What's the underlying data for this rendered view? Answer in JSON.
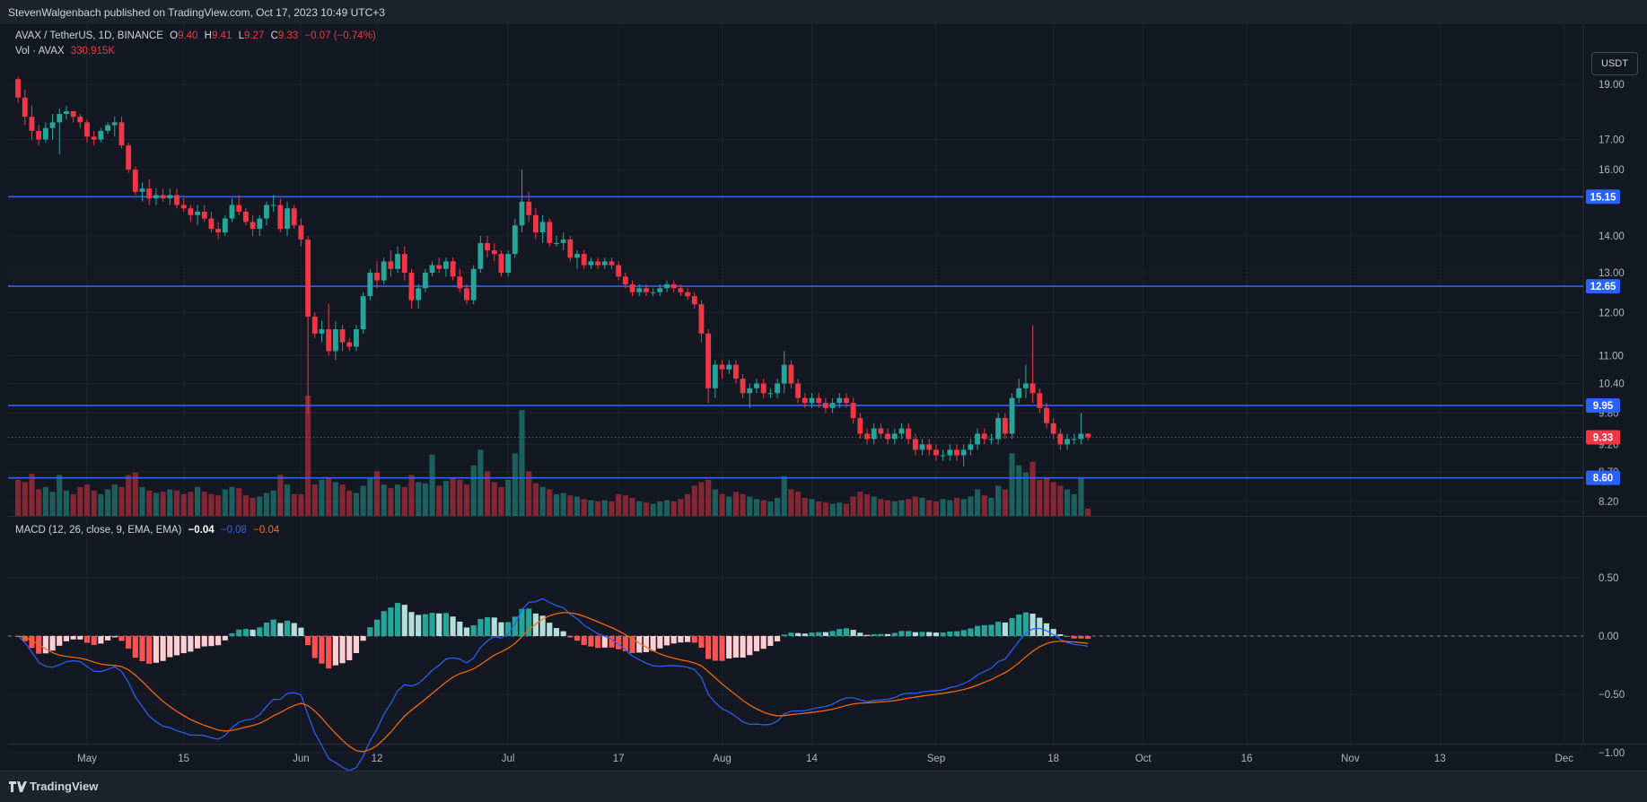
{
  "header": {
    "published": "StevenWalgenbach published on TradingView.com, Oct 17, 2023 10:49 UTC+3"
  },
  "legend": {
    "symbol": "AVAX / TetherUS, 1D, BINANCE",
    "o_label": "O",
    "o_value": "9.40",
    "h_label": "H",
    "h_value": "9.41",
    "l_label": "L",
    "l_value": "9.27",
    "c_label": "C",
    "c_value": "9.33",
    "change": "−0.07 (−0.74%)",
    "vol_label": "Vol · AVAX",
    "vol_value": "330.915K",
    "macd_label": "MACD (12, 26, close, 9, EMA, EMA)",
    "macd_hist": "−0.04",
    "macd_line": "−0.08",
    "macd_signal": "−0.04"
  },
  "toolbar": {
    "currency_button": "USDT"
  },
  "footer": {
    "brand": "TradingView",
    "logo_icon": "tradingview-logo-icon"
  },
  "colors": {
    "up": "#26a69a",
    "down": "#f23645",
    "level": "#2962ff",
    "macd_line": "#2962ff",
    "signal_line": "#ff6d00"
  },
  "chart_data": {
    "type": "candlestick",
    "price_axis": {
      "scale": "log",
      "ticks": [
        "19.00",
        "17.00",
        "16.00",
        "14.00",
        "13.00",
        "12.00",
        "11.00",
        "10.40",
        "9.80",
        "9.20",
        "8.70",
        "8.20"
      ],
      "levels": [
        15.15,
        12.65,
        9.95,
        8.6
      ],
      "level_labels": [
        "15.15",
        "12.65",
        "9.95",
        "8.60"
      ],
      "last_price": 9.33,
      "last_label": "9.33"
    },
    "macd_axis": {
      "ticks": [
        "0.50",
        "0.00",
        "−0.50",
        "−1.00"
      ],
      "values": [
        0.5,
        0,
        -0.5,
        -1.0
      ],
      "range": [
        -1.1,
        0.62
      ]
    },
    "time_axis": {
      "labels": [
        "May",
        "15",
        "Jun",
        "12",
        "Jul",
        "17",
        "Aug",
        "14",
        "Sep",
        "18",
        "Oct",
        "16",
        "Nov",
        "13",
        "Dec"
      ],
      "first_date": "2023-04-21",
      "label_days": [
        10,
        24,
        41,
        52,
        71,
        87,
        102,
        115,
        133,
        150,
        163,
        178,
        193,
        206,
        224
      ]
    },
    "ohlc": [
      [
        19.2,
        19.3,
        18.3,
        18.5
      ],
      [
        18.5,
        18.8,
        17.5,
        17.8
      ],
      [
        17.8,
        18.2,
        17.0,
        17.3
      ],
      [
        17.3,
        17.5,
        16.8,
        17.0
      ],
      [
        17.0,
        17.6,
        16.9,
        17.4
      ],
      [
        17.4,
        17.9,
        17.0,
        17.6
      ],
      [
        17.6,
        18.1,
        16.5,
        17.9
      ],
      [
        17.9,
        18.2,
        17.7,
        18.0
      ],
      [
        18.0,
        18.0,
        17.6,
        17.8
      ],
      [
        17.8,
        17.9,
        17.4,
        17.6
      ],
      [
        17.6,
        17.7,
        16.9,
        17.1
      ],
      [
        17.1,
        17.3,
        16.8,
        17.0
      ],
      [
        17.0,
        17.4,
        16.9,
        17.3
      ],
      [
        17.3,
        17.6,
        17.2,
        17.5
      ],
      [
        17.5,
        17.8,
        17.1,
        17.6
      ],
      [
        17.6,
        17.8,
        16.7,
        16.8
      ],
      [
        16.8,
        16.9,
        15.9,
        16.0
      ],
      [
        16.0,
        16.1,
        15.2,
        15.3
      ],
      [
        15.3,
        15.6,
        15.0,
        15.4
      ],
      [
        15.4,
        15.7,
        14.9,
        15.1
      ],
      [
        15.1,
        15.4,
        14.9,
        15.2
      ],
      [
        15.2,
        15.4,
        15.0,
        15.1
      ],
      [
        15.1,
        15.4,
        14.9,
        15.2
      ],
      [
        15.2,
        15.4,
        14.8,
        14.9
      ],
      [
        14.9,
        15.1,
        14.7,
        14.8
      ],
      [
        14.8,
        14.9,
        14.4,
        14.6
      ],
      [
        14.6,
        14.9,
        14.3,
        14.7
      ],
      [
        14.7,
        14.9,
        14.4,
        14.5
      ],
      [
        14.5,
        14.7,
        14.1,
        14.2
      ],
      [
        14.2,
        14.4,
        13.9,
        14.1
      ],
      [
        14.1,
        14.6,
        14.0,
        14.5
      ],
      [
        14.5,
        15.1,
        14.4,
        14.9
      ],
      [
        14.9,
        15.2,
        14.6,
        14.7
      ],
      [
        14.7,
        14.8,
        14.3,
        14.4
      ],
      [
        14.4,
        14.6,
        14.0,
        14.2
      ],
      [
        14.2,
        14.6,
        14.0,
        14.5
      ],
      [
        14.5,
        15.0,
        14.3,
        14.9
      ],
      [
        14.9,
        15.2,
        14.7,
        14.9
      ],
      [
        14.9,
        15.1,
        14.1,
        14.2
      ],
      [
        14.2,
        15.0,
        14.0,
        14.8
      ],
      [
        14.8,
        14.9,
        14.2,
        14.3
      ],
      [
        14.3,
        14.5,
        13.7,
        13.9
      ],
      [
        13.9,
        14.0,
        9.8,
        11.9
      ],
      [
        11.9,
        12.0,
        11.4,
        11.5
      ],
      [
        11.5,
        11.8,
        11.3,
        11.6
      ],
      [
        11.6,
        12.2,
        11.0,
        11.1
      ],
      [
        11.1,
        11.8,
        10.9,
        11.6
      ],
      [
        11.6,
        11.7,
        11.1,
        11.3
      ],
      [
        11.3,
        11.4,
        11.1,
        11.2
      ],
      [
        11.2,
        11.7,
        11.1,
        11.6
      ],
      [
        11.6,
        12.5,
        11.5,
        12.4
      ],
      [
        12.4,
        13.1,
        12.3,
        13.0
      ],
      [
        13.0,
        13.3,
        12.6,
        12.8
      ],
      [
        12.8,
        13.4,
        12.7,
        13.3
      ],
      [
        13.3,
        13.6,
        12.9,
        13.1
      ],
      [
        13.1,
        13.7,
        13.0,
        13.5
      ],
      [
        13.5,
        13.7,
        12.8,
        13.0
      ],
      [
        13.0,
        13.1,
        12.1,
        12.3
      ],
      [
        12.3,
        12.7,
        12.1,
        12.6
      ],
      [
        12.6,
        13.1,
        12.5,
        13.0
      ],
      [
        13.0,
        13.3,
        12.9,
        13.2
      ],
      [
        13.2,
        13.4,
        13.0,
        13.1
      ],
      [
        13.1,
        13.4,
        12.9,
        13.3
      ],
      [
        13.3,
        13.4,
        12.8,
        12.9
      ],
      [
        12.9,
        13.1,
        12.5,
        12.6
      ],
      [
        12.6,
        12.7,
        12.2,
        12.3
      ],
      [
        12.3,
        13.2,
        12.2,
        13.1
      ],
      [
        13.1,
        14.0,
        13.0,
        13.8
      ],
      [
        13.8,
        14.0,
        13.4,
        13.6
      ],
      [
        13.6,
        13.8,
        13.3,
        13.5
      ],
      [
        13.5,
        13.6,
        12.9,
        13.0
      ],
      [
        13.0,
        13.6,
        12.9,
        13.5
      ],
      [
        13.5,
        14.5,
        13.4,
        14.3
      ],
      [
        14.3,
        16.0,
        14.1,
        15.0
      ],
      [
        15.0,
        15.3,
        14.4,
        14.6
      ],
      [
        14.6,
        14.8,
        13.9,
        14.1
      ],
      [
        14.1,
        14.6,
        13.8,
        14.4
      ],
      [
        14.4,
        14.5,
        13.7,
        13.8
      ],
      [
        13.8,
        14.0,
        13.7,
        13.8
      ],
      [
        13.8,
        14.1,
        13.6,
        13.9
      ],
      [
        13.9,
        14.0,
        13.3,
        13.4
      ],
      [
        13.4,
        13.6,
        13.1,
        13.5
      ],
      [
        13.5,
        13.6,
        13.1,
        13.2
      ],
      [
        13.2,
        13.4,
        13.1,
        13.3
      ],
      [
        13.3,
        13.4,
        13.1,
        13.2
      ],
      [
        13.2,
        13.4,
        13.1,
        13.3
      ],
      [
        13.3,
        13.4,
        13.1,
        13.2
      ],
      [
        13.2,
        13.3,
        12.8,
        12.9
      ],
      [
        12.9,
        13.0,
        12.6,
        12.7
      ],
      [
        12.7,
        12.8,
        12.4,
        12.5
      ],
      [
        12.5,
        12.7,
        12.4,
        12.6
      ],
      [
        12.6,
        12.7,
        12.4,
        12.5
      ],
      [
        12.5,
        12.6,
        12.4,
        12.5
      ],
      [
        12.5,
        12.7,
        12.4,
        12.6
      ],
      [
        12.6,
        12.8,
        12.5,
        12.7
      ],
      [
        12.7,
        12.8,
        12.5,
        12.6
      ],
      [
        12.6,
        12.7,
        12.4,
        12.5
      ],
      [
        12.5,
        12.6,
        12.3,
        12.4
      ],
      [
        12.4,
        12.5,
        12.1,
        12.2
      ],
      [
        12.2,
        12.3,
        11.3,
        11.5
      ],
      [
        11.5,
        11.6,
        10.0,
        10.3
      ],
      [
        10.3,
        10.9,
        10.1,
        10.8
      ],
      [
        10.8,
        10.9,
        10.5,
        10.7
      ],
      [
        10.7,
        10.9,
        10.6,
        10.8
      ],
      [
        10.8,
        10.9,
        10.4,
        10.5
      ],
      [
        10.5,
        10.6,
        10.1,
        10.2
      ],
      [
        10.2,
        10.4,
        9.9,
        10.3
      ],
      [
        10.3,
        10.5,
        10.2,
        10.4
      ],
      [
        10.4,
        10.5,
        10.1,
        10.2
      ],
      [
        10.2,
        10.3,
        10.1,
        10.2
      ],
      [
        10.2,
        10.5,
        10.1,
        10.4
      ],
      [
        10.4,
        11.1,
        10.2,
        10.8
      ],
      [
        10.8,
        10.9,
        10.3,
        10.4
      ],
      [
        10.4,
        10.5,
        10.0,
        10.1
      ],
      [
        10.1,
        10.2,
        9.9,
        10.0
      ],
      [
        10.0,
        10.2,
        9.9,
        10.1
      ],
      [
        10.1,
        10.2,
        9.9,
        10.0
      ],
      [
        10.0,
        10.1,
        9.8,
        9.9
      ],
      [
        9.9,
        10.1,
        9.8,
        10.0
      ],
      [
        10.0,
        10.2,
        9.9,
        10.1
      ],
      [
        10.1,
        10.2,
        9.9,
        10.0
      ],
      [
        10.0,
        10.1,
        9.6,
        9.7
      ],
      [
        9.7,
        9.8,
        9.3,
        9.4
      ],
      [
        9.4,
        9.5,
        9.2,
        9.3
      ],
      [
        9.3,
        9.6,
        9.2,
        9.5
      ],
      [
        9.5,
        9.6,
        9.3,
        9.4
      ],
      [
        9.4,
        9.5,
        9.2,
        9.3
      ],
      [
        9.3,
        9.5,
        9.2,
        9.4
      ],
      [
        9.4,
        9.6,
        9.3,
        9.5
      ],
      [
        9.5,
        9.6,
        9.2,
        9.3
      ],
      [
        9.3,
        9.4,
        9.0,
        9.1
      ],
      [
        9.1,
        9.3,
        9.0,
        9.2
      ],
      [
        9.2,
        9.3,
        9.0,
        9.1
      ],
      [
        9.1,
        9.2,
        8.9,
        9.0
      ],
      [
        9.0,
        9.1,
        8.9,
        9.0
      ],
      [
        9.0,
        9.2,
        8.9,
        9.1
      ],
      [
        9.1,
        9.2,
        8.9,
        9.0
      ],
      [
        9.0,
        9.2,
        8.8,
        9.1
      ],
      [
        9.1,
        9.3,
        9.0,
        9.2
      ],
      [
        9.2,
        9.5,
        9.1,
        9.4
      ],
      [
        9.4,
        9.5,
        9.2,
        9.3
      ],
      [
        9.3,
        9.4,
        9.2,
        9.3
      ],
      [
        9.3,
        9.8,
        9.2,
        9.7
      ],
      [
        9.7,
        9.8,
        9.3,
        9.4
      ],
      [
        9.4,
        10.2,
        9.3,
        10.1
      ],
      [
        10.1,
        10.5,
        10.0,
        10.3
      ],
      [
        10.3,
        10.8,
        10.1,
        10.4
      ],
      [
        10.4,
        11.7,
        10.0,
        10.2
      ],
      [
        10.2,
        10.3,
        9.8,
        9.9
      ],
      [
        9.9,
        10.0,
        9.5,
        9.6
      ],
      [
        9.6,
        9.7,
        9.3,
        9.4
      ],
      [
        9.4,
        9.5,
        9.1,
        9.2
      ],
      [
        9.2,
        9.4,
        9.1,
        9.3
      ],
      [
        9.3,
        9.4,
        9.2,
        9.3
      ],
      [
        9.3,
        9.8,
        9.2,
        9.4
      ],
      [
        9.4,
        9.41,
        9.27,
        9.33
      ]
    ],
    "volume": [
      0.3,
      0.28,
      0.35,
      0.22,
      0.24,
      0.2,
      0.34,
      0.21,
      0.18,
      0.24,
      0.26,
      0.21,
      0.18,
      0.22,
      0.26,
      0.24,
      0.34,
      0.36,
      0.24,
      0.21,
      0.19,
      0.2,
      0.22,
      0.21,
      0.18,
      0.2,
      0.24,
      0.2,
      0.18,
      0.17,
      0.22,
      0.24,
      0.23,
      0.17,
      0.15,
      0.16,
      0.19,
      0.21,
      0.34,
      0.26,
      0.18,
      0.18,
      1.0,
      0.26,
      0.3,
      0.31,
      0.28,
      0.26,
      0.21,
      0.19,
      0.25,
      0.31,
      0.37,
      0.26,
      0.23,
      0.26,
      0.24,
      0.34,
      0.28,
      0.27,
      0.51,
      0.25,
      0.29,
      0.32,
      0.3,
      0.26,
      0.42,
      0.55,
      0.37,
      0.28,
      0.24,
      0.3,
      0.52,
      0.88,
      0.37,
      0.27,
      0.24,
      0.22,
      0.18,
      0.19,
      0.17,
      0.16,
      0.14,
      0.13,
      0.12,
      0.13,
      0.12,
      0.18,
      0.17,
      0.15,
      0.12,
      0.11,
      0.1,
      0.12,
      0.13,
      0.12,
      0.14,
      0.18,
      0.25,
      0.28,
      0.3,
      0.22,
      0.18,
      0.16,
      0.2,
      0.18,
      0.16,
      0.14,
      0.13,
      0.12,
      0.15,
      0.33,
      0.22,
      0.2,
      0.15,
      0.14,
      0.12,
      0.11,
      0.1,
      0.11,
      0.1,
      0.16,
      0.2,
      0.18,
      0.16,
      0.14,
      0.13,
      0.12,
      0.13,
      0.14,
      0.16,
      0.15,
      0.13,
      0.12,
      0.14,
      0.13,
      0.15,
      0.14,
      0.16,
      0.22,
      0.17,
      0.15,
      0.25,
      0.22,
      0.52,
      0.42,
      0.36,
      0.45,
      0.3,
      0.32,
      0.28,
      0.25,
      0.22,
      0.18,
      0.32,
      0.06
    ]
  }
}
